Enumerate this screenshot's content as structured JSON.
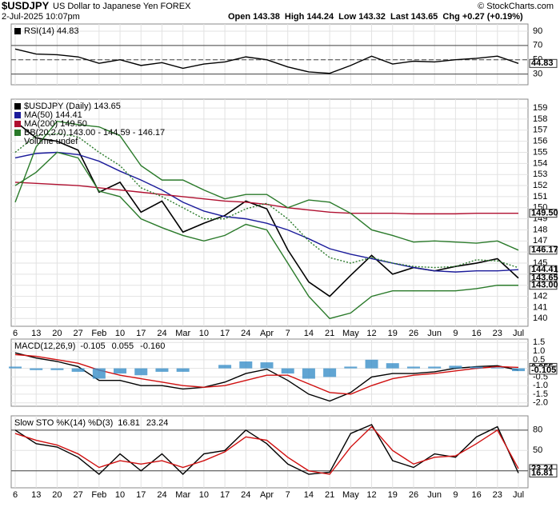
{
  "header": {
    "symbol": "$USDJPY",
    "description": "US Dollar to Japanese Yen FOREX",
    "date": "2-Jul-2025 10:07pm",
    "quote": "Open 143.38  High 144.24  Low 143.32  Last 143.65  Chg +0.27 (+0.19%)",
    "copyright": "© StockCharts.com"
  },
  "chart_data": [
    {
      "type": "line",
      "legend_title": null,
      "series": [
        {
          "name": "RSI(14) 44.83",
          "color": "#000000",
          "values": [
            65,
            58,
            57,
            54,
            45,
            50,
            42,
            46,
            38,
            44,
            47,
            54,
            50,
            40,
            33,
            31,
            42,
            55,
            44,
            48,
            47,
            50,
            52,
            55,
            44.83
          ]
        }
      ],
      "ylim": [
        15,
        100
      ],
      "yticks": [
        90,
        70,
        50,
        30
      ],
      "ref_lines": [
        70,
        30
      ],
      "dashed_lines": [
        50
      ],
      "markers": [
        {
          "value": 44.83,
          "label": "44.83"
        }
      ]
    },
    {
      "type": "line",
      "legend_title": null,
      "categories": [
        "6",
        "13",
        "20",
        "27",
        "Feb",
        "10",
        "17",
        "24",
        "Mar",
        "10",
        "17",
        "24",
        "Apr",
        "7",
        "14",
        "21",
        "May",
        "12",
        "19",
        "26",
        "Jun",
        "9",
        "16",
        "23",
        "Jul"
      ],
      "series": [
        {
          "name": "$USDJPY (Daily) 143.65",
          "color": "#000000",
          "values": [
            157.8,
            156.3,
            156.0,
            155.2,
            151.4,
            152.3,
            149.6,
            150.6,
            147.8,
            148.6,
            149.3,
            150.6,
            149.9,
            146.2,
            143.3,
            142.0,
            143.9,
            145.7,
            144.0,
            144.6,
            144.3,
            144.7,
            145.0,
            145.4,
            143.65
          ]
        },
        {
          "name": "MA(50) 144.41",
          "color": "#1a1a9a",
          "values": [
            154.5,
            154.9,
            155.0,
            154.8,
            154.2,
            153.3,
            152.5,
            151.6,
            150.5,
            149.7,
            149.2,
            149.0,
            148.6,
            148.0,
            147.2,
            146.3,
            145.8,
            145.4,
            145.0,
            144.6,
            144.3,
            144.2,
            144.3,
            144.3,
            144.41
          ]
        },
        {
          "name": "MA(200) 149.50",
          "color": "#b01030",
          "values": [
            152.3,
            152.2,
            152.1,
            152.0,
            151.8,
            151.6,
            151.4,
            151.2,
            151.0,
            150.8,
            150.6,
            150.5,
            150.3,
            150.0,
            149.8,
            149.6,
            149.5,
            149.5,
            149.5,
            149.45,
            149.45,
            149.45,
            149.5,
            149.5,
            149.5
          ]
        },
        {
          "name": "BB(20,2.0) 143.00 - 144.59 - 146.17",
          "color": "#2a7a2a",
          "values": [
            150.5,
            155.5,
            157.8,
            157.5,
            157.3,
            156.5,
            153.8,
            152.5,
            152.5,
            151.6,
            150.8,
            151.2,
            151.2,
            150.0,
            150.7,
            150.5,
            149.5,
            148.0,
            147.5,
            146.9,
            147.0,
            146.9,
            146.8,
            147.0,
            146.17
          ]
        },
        {
          "name": null,
          "color": "#2a7a2a",
          "dash": true,
          "values": [
            155.0,
            156.5,
            156.7,
            156.4,
            155.0,
            153.8,
            151.8,
            151.0,
            150.0,
            149.0,
            149.0,
            149.9,
            150.4,
            149.0,
            147.0,
            145.5,
            145.0,
            145.5,
            145.0,
            144.7,
            144.6,
            144.7,
            145.3,
            145.2,
            144.59
          ]
        },
        {
          "name": null,
          "color": "#2a7a2a",
          "values": [
            152.0,
            153.2,
            155.0,
            154.5,
            151.5,
            151.0,
            149.0,
            148.2,
            147.5,
            147.0,
            147.5,
            148.5,
            148.0,
            145.0,
            142.0,
            140.0,
            140.5,
            142.0,
            142.5,
            142.5,
            142.5,
            142.5,
            142.7,
            143.0,
            143.0
          ]
        }
      ],
      "notes": [
        "Volume undef"
      ],
      "ylim": [
        139.3,
        159.8
      ],
      "yticks": [
        140,
        141,
        142,
        143,
        144,
        145,
        146,
        147,
        148,
        149,
        150,
        151,
        152,
        153,
        154,
        155,
        156,
        157,
        158,
        159
      ],
      "markers": [
        {
          "value": 149.5,
          "label": "149.50"
        },
        {
          "value": 146.17,
          "label": "146.17"
        },
        {
          "value": 144.41,
          "label": "144.41"
        },
        {
          "value": 143.65,
          "label": "143.65"
        },
        {
          "value": 143.0,
          "label": "143.00"
        }
      ]
    },
    {
      "type": "line",
      "legend_title": "MACD(12,26,9)",
      "series": [
        {
          "name": "-0.105",
          "color": "#000000",
          "values": [
            0.9,
            0.6,
            0.4,
            0.1,
            -0.7,
            -0.7,
            -1.0,
            -1.0,
            -1.2,
            -1.1,
            -0.8,
            -0.3,
            -0.05,
            -0.7,
            -1.5,
            -1.9,
            -1.4,
            -0.5,
            -0.3,
            -0.3,
            -0.2,
            0.0,
            0.1,
            0.15,
            -0.105
          ]
        },
        {
          "name": "0.055",
          "color": "#d01010",
          "values": [
            0.8,
            0.7,
            0.5,
            0.3,
            -0.1,
            -0.4,
            -0.6,
            -0.8,
            -1.0,
            -1.1,
            -1.0,
            -0.7,
            -0.4,
            -0.4,
            -0.9,
            -1.4,
            -1.5,
            -1.0,
            -0.6,
            -0.4,
            -0.3,
            -0.15,
            0.0,
            0.1,
            0.055
          ]
        },
        {
          "name": "-0.160",
          "color": "#3a8fc8",
          "style": "bar",
          "values": [
            0.1,
            -0.1,
            -0.1,
            -0.2,
            -0.6,
            -0.3,
            -0.4,
            -0.2,
            -0.2,
            0.0,
            0.2,
            0.4,
            0.35,
            -0.3,
            -0.6,
            -0.5,
            0.1,
            0.5,
            0.3,
            0.1,
            0.1,
            0.15,
            0.1,
            0.05,
            -0.16
          ]
        }
      ],
      "ylim": [
        -2.2,
        1.7
      ],
      "yticks": [
        1.5,
        {
          "value": 1,
          "label": "1.0"
        },
        0.5,
        {
          "value": 0,
          "label": "0.0"
        },
        -0.5,
        {
          "value": -1,
          "label": "-1.0"
        },
        -1.5,
        {
          "value": -2,
          "label": "-2.0"
        }
      ],
      "markers": [
        {
          "value": 0.055,
          "label": "0.055"
        },
        {
          "value": -0.105,
          "label": "-0.105"
        }
      ]
    },
    {
      "type": "line",
      "legend_title": "Slow STO %K(14) %D(3)",
      "categories": [
        "6",
        "13",
        "20",
        "27",
        "Feb",
        "10",
        "17",
        "24",
        "Mar",
        "10",
        "17",
        "24",
        "Apr",
        "7",
        "14",
        "21",
        "May",
        "12",
        "19",
        "26",
        "Jun",
        "9",
        "16",
        "23",
        "Jul"
      ],
      "series": [
        {
          "name": "16.81",
          "color": "#000000",
          "values": [
            80,
            60,
            55,
            40,
            15,
            45,
            20,
            45,
            15,
            45,
            50,
            80,
            60,
            30,
            15,
            18,
            75,
            88,
            35,
            25,
            45,
            40,
            70,
            85,
            16.81
          ]
        },
        {
          "name": "23.24",
          "color": "#d01010",
          "values": [
            75,
            65,
            58,
            45,
            25,
            35,
            30,
            35,
            25,
            35,
            48,
            70,
            65,
            40,
            20,
            15,
            55,
            85,
            50,
            30,
            40,
            42,
            60,
            80,
            23.24
          ]
        }
      ],
      "ylim": [
        -5,
        101
      ],
      "yticks": [
        80,
        50,
        20
      ],
      "ref_lines": [
        80,
        20
      ],
      "markers": [
        {
          "value": 23.24,
          "label": "23.24"
        },
        {
          "value": 16.81,
          "label": "16.81"
        }
      ]
    }
  ]
}
